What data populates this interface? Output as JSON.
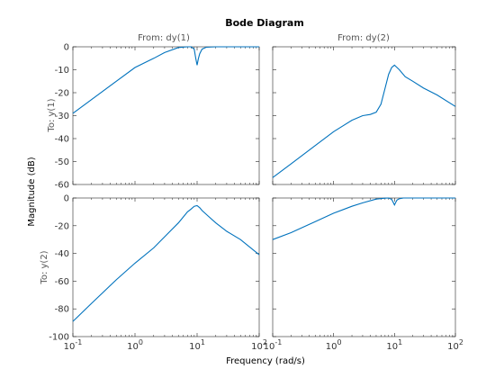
{
  "colors": {
    "line": "#0072BD",
    "axes": "#262626"
  },
  "chart_data": {
    "type": "line",
    "title": "Bode Diagram",
    "xlabel": "Frequency  (rad/s)",
    "ylabel": "Magnitude (dB)",
    "xscale": "log",
    "xlim": [
      0.1,
      100
    ],
    "grid": false,
    "column_labels": [
      "From: dy(1)",
      "From: dy(2)"
    ],
    "row_labels": [
      "To: y(1)",
      "To: y(2)"
    ],
    "x_tick_labels": [
      "10^-1",
      "10^0",
      "10^1",
      "10^2"
    ],
    "row_ylims": [
      [
        -60,
        0
      ],
      [
        -100,
        0
      ]
    ],
    "row_y_ticks": [
      [
        "-60",
        "-50",
        "-40",
        "-30",
        "-20",
        "-10",
        "0"
      ],
      [
        "-100",
        "-80",
        "-60",
        "-40",
        "-20",
        "0"
      ]
    ],
    "panels": [
      {
        "row": 0,
        "col": 0,
        "x": [
          0.1,
          0.2,
          0.5,
          1,
          2,
          3,
          5,
          7,
          8,
          9,
          9.5,
          10,
          10.5,
          11,
          12,
          14,
          20,
          50,
          100
        ],
        "y": [
          -29,
          -23,
          -15,
          -9,
          -5,
          -2.5,
          -0.3,
          0,
          0,
          -1,
          -5,
          -8,
          -5,
          -3,
          -1,
          -0.2,
          0,
          0,
          0
        ]
      },
      {
        "row": 0,
        "col": 1,
        "x": [
          0.1,
          0.2,
          0.5,
          1,
          2,
          3,
          4,
          5,
          6,
          7,
          8,
          9,
          10,
          11,
          12,
          15,
          20,
          30,
          50,
          100
        ],
        "y": [
          -57,
          -51,
          -43,
          -37,
          -32,
          -30,
          -29.5,
          -28.5,
          -25,
          -18,
          -12,
          -9,
          -8,
          -9,
          -10,
          -13,
          -15,
          -18,
          -21,
          -26
        ]
      },
      {
        "row": 1,
        "col": 0,
        "x": [
          0.1,
          0.2,
          0.5,
          1,
          2,
          3,
          5,
          7,
          8,
          9,
          10,
          11,
          12,
          15,
          20,
          30,
          50,
          100
        ],
        "y": [
          -89,
          -76,
          -59,
          -47,
          -36,
          -28,
          -18,
          -10,
          -8,
          -6,
          -5.5,
          -7,
          -9,
          -13,
          -18,
          -24,
          -30,
          -41
        ]
      },
      {
        "row": 1,
        "col": 1,
        "x": [
          0.1,
          0.2,
          0.5,
          1,
          2,
          3,
          5,
          7,
          8,
          9,
          9.5,
          10,
          10.5,
          11,
          12,
          14,
          20,
          50,
          100
        ],
        "y": [
          -30,
          -25,
          -17,
          -11,
          -6,
          -3.5,
          -0.8,
          -0.1,
          0,
          -1,
          -3,
          -5,
          -3,
          -1.5,
          -0.5,
          0,
          0,
          0,
          0
        ]
      }
    ]
  }
}
